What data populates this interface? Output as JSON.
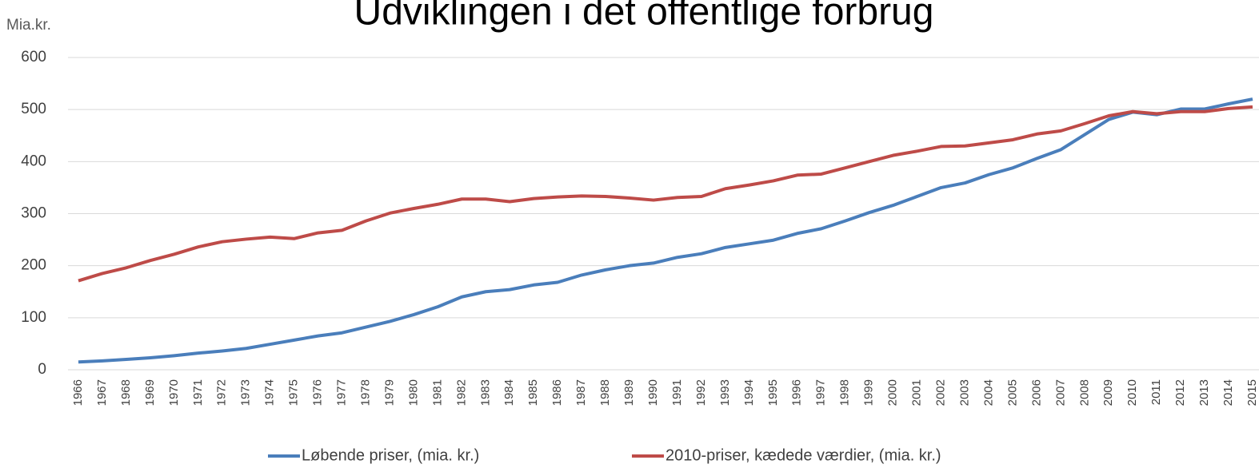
{
  "chart_data": {
    "type": "line",
    "title": "Udviklingen i det offentlige forbrug",
    "y_label": "Mia.kr.",
    "categories": [
      "1966",
      "1967",
      "1968",
      "1969",
      "1970",
      "1971",
      "1972",
      "1973",
      "1974",
      "1975",
      "1976",
      "1977",
      "1978",
      "1979",
      "1980",
      "1981",
      "1982",
      "1983",
      "1984",
      "1985",
      "1986",
      "1987",
      "1988",
      "1989",
      "1990",
      "1991",
      "1992",
      "1993",
      "1994",
      "1995",
      "1996",
      "1997",
      "1998",
      "1999",
      "2000",
      "2001",
      "2002",
      "2003",
      "2004",
      "2005",
      "2006",
      "2007",
      "2008",
      "2009",
      "2010",
      "2011",
      "2012",
      "2013",
      "2014",
      "2015"
    ],
    "series": [
      {
        "name": "Løbende priser, (mia. kr.)",
        "color": "#4a7ebb",
        "values": [
          15,
          17,
          20,
          23,
          27,
          32,
          36,
          41,
          49,
          57,
          65,
          71,
          82,
          93,
          106,
          121,
          140,
          150,
          154,
          163,
          168,
          182,
          192,
          200,
          205,
          216,
          223,
          235,
          242,
          249,
          262,
          271,
          286,
          302,
          316,
          333,
          350,
          359,
          375,
          388,
          406,
          423,
          452,
          481,
          495,
          490,
          501,
          501,
          511,
          520
        ]
      },
      {
        "name": "2010-priser, kædede værdier, (mia. kr.)",
        "color": "#be4b48",
        "values": [
          171,
          185,
          196,
          210,
          222,
          236,
          246,
          251,
          255,
          252,
          263,
          268,
          286,
          301,
          310,
          318,
          328,
          328,
          323,
          329,
          332,
          334,
          333,
          330,
          326,
          331,
          333,
          348,
          355,
          363,
          374,
          376,
          388,
          400,
          412,
          420,
          429,
          430,
          436,
          442,
          453,
          459,
          473,
          488,
          496,
          492,
          496,
          496,
          502,
          505
        ]
      }
    ],
    "ylim": [
      0,
      600
    ],
    "yticks": [
      0,
      100,
      200,
      300,
      400,
      500,
      600
    ],
    "grid": true,
    "legend": "bottom"
  }
}
